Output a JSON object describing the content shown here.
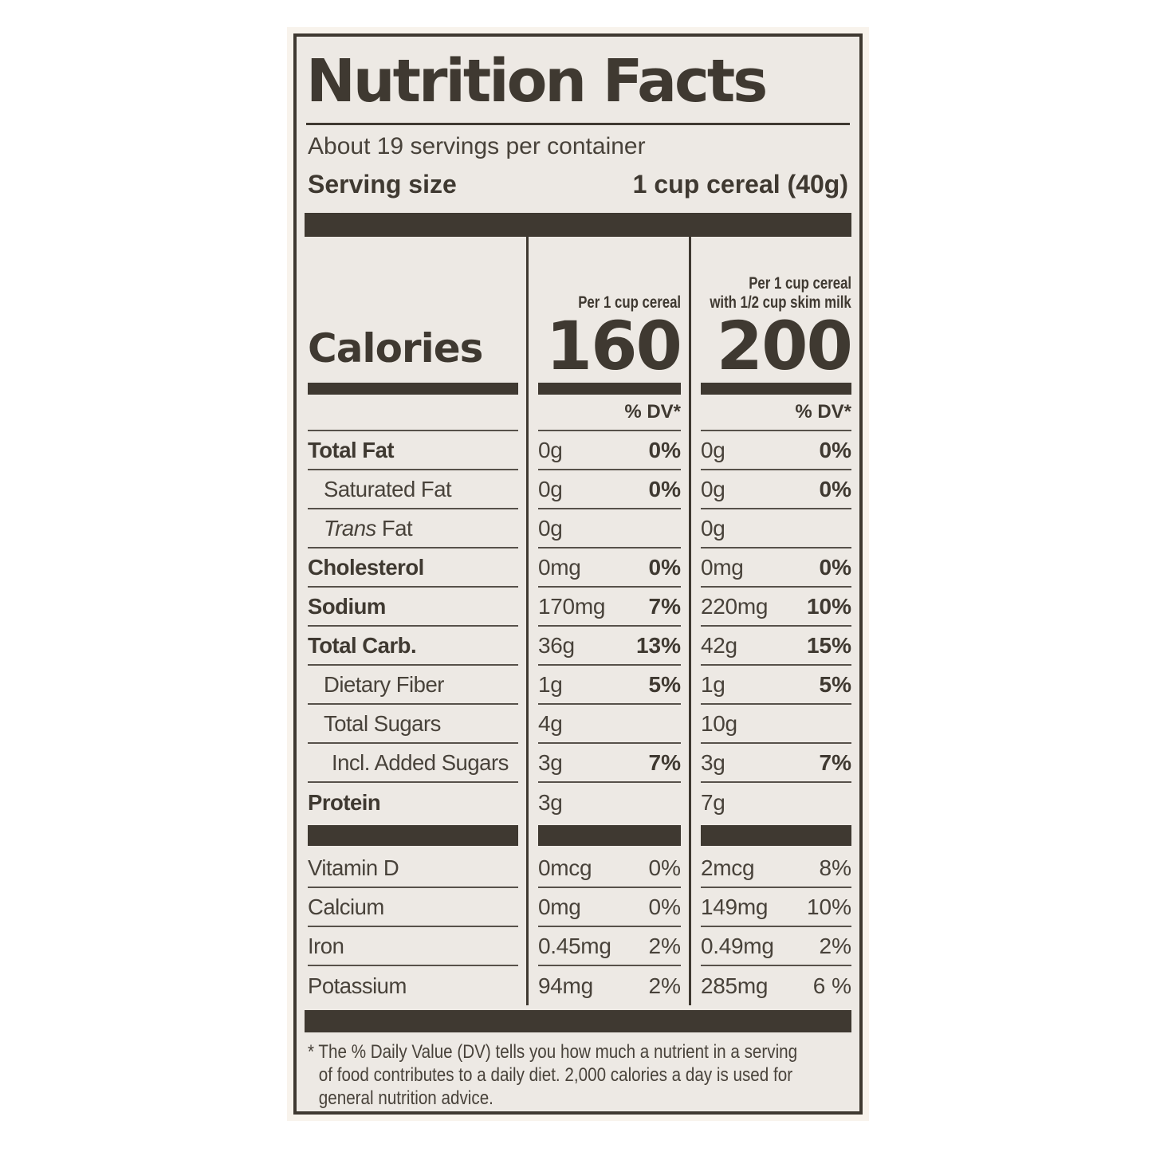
{
  "label": {
    "title": "Nutrition Facts",
    "servings_per_container": "About 19 servings per container",
    "serving_size_label": "Serving size",
    "serving_size_value": "1 cup cereal (40g)",
    "calories_label": "Calories",
    "dv_header": "% DV*",
    "columns": [
      {
        "header": "Per 1 cup cereal",
        "calories": "160"
      },
      {
        "header_line1": "Per 1 cup cereal",
        "header_line2": "with 1/2 cup skim milk",
        "calories": "200"
      }
    ],
    "nutrient_rows": [
      {
        "name": "Total Fat",
        "cereal_amount": "0g",
        "cereal_dv": "0%",
        "milk_amount": "0g",
        "milk_dv": "0%"
      },
      {
        "name": "Saturated Fat",
        "cereal_amount": "0g",
        "cereal_dv": "0%",
        "milk_amount": "0g",
        "milk_dv": "0%"
      },
      {
        "name_italic": "Trans",
        "name": " Fat",
        "cereal_amount": "0g",
        "milk_amount": "0g"
      },
      {
        "name": "Cholesterol",
        "cereal_amount": "0mg",
        "cereal_dv": "0%",
        "milk_amount": "0mg",
        "milk_dv": "0%"
      },
      {
        "name": "Sodium",
        "cereal_amount": "170mg",
        "cereal_dv": "7%",
        "milk_amount": "220mg",
        "milk_dv": "10%"
      },
      {
        "name": "Total Carb.",
        "cereal_amount": "36g",
        "cereal_dv": "13%",
        "milk_amount": "42g",
        "milk_dv": "15%"
      },
      {
        "name": "Dietary Fiber",
        "cereal_amount": "1g",
        "cereal_dv": "5%",
        "milk_amount": "1g",
        "milk_dv": "5%"
      },
      {
        "name": "Total Sugars",
        "cereal_amount": "4g",
        "milk_amount": "10g"
      },
      {
        "name": "Incl. Added Sugars",
        "cereal_amount": "3g",
        "cereal_dv": "7%",
        "milk_amount": "3g",
        "milk_dv": "7%"
      },
      {
        "name": "Protein",
        "cereal_amount": "3g",
        "milk_amount": "7g"
      }
    ],
    "vitamin_rows": [
      {
        "name": "Vitamin D",
        "cereal_amount": "0mcg",
        "cereal_dv": "0%",
        "milk_amount": "2mcg",
        "milk_dv": "8%"
      },
      {
        "name": "Calcium",
        "cereal_amount": "0mg",
        "cereal_dv": "0%",
        "milk_amount": "149mg",
        "milk_dv": "10%"
      },
      {
        "name": "Iron",
        "cereal_amount": "0.45mg",
        "cereal_dv": "2%",
        "milk_amount": "0.49mg",
        "milk_dv": "2%"
      },
      {
        "name": "Potassium",
        "cereal_amount": "94mg",
        "cereal_dv": "2%",
        "milk_amount": "285mg",
        "milk_dv": "6 %"
      }
    ],
    "footnote_lines": [
      "* The % Daily Value (DV) tells you how much a nutrient in a serving",
      "of food contributes to a daily diet. 2,000 calories a day is used for",
      "general nutrition advice."
    ],
    "colors": {
      "paper": "#EDE9E4",
      "ink": "#3F3931"
    }
  }
}
